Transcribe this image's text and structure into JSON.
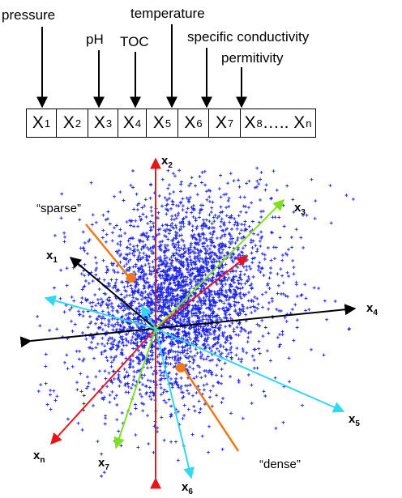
{
  "top_labels": {
    "pressure": "pressure",
    "ph": "pH",
    "toc": "TOC",
    "temperature": "temperature",
    "specific_conductivity": "specific conductivity",
    "permitivity": "permitivity"
  },
  "vector_cells": [
    {
      "base": "X",
      "sub": "1"
    },
    {
      "base": "X",
      "sub": "2"
    },
    {
      "base": "X",
      "sub": "3"
    },
    {
      "base": "X",
      "sub": "4"
    },
    {
      "base": "X",
      "sub": "5"
    },
    {
      "base": "X",
      "sub": "6"
    },
    {
      "base": "X",
      "sub": "7"
    },
    {
      "base": "X",
      "sub": "8",
      "suffix": "….. X",
      "sub2": "n"
    }
  ],
  "axes": [
    {
      "id": "x1",
      "base": "x",
      "sub": "1",
      "color": "#000000"
    },
    {
      "id": "x2",
      "base": "x",
      "sub": "2",
      "color": "#e8141c"
    },
    {
      "id": "x3",
      "base": "x",
      "sub": "3",
      "color": "#80e020"
    },
    {
      "id": "x4",
      "base": "x",
      "sub": "4",
      "color": "#000000"
    },
    {
      "id": "x5",
      "base": "x",
      "sub": "5",
      "color": "#30d8f0"
    },
    {
      "id": "x6",
      "base": "x",
      "sub": "6",
      "color": "#30d8f0"
    },
    {
      "id": "x7",
      "base": "x",
      "sub": "7",
      "color": "#80e020"
    },
    {
      "id": "xn",
      "base": "x",
      "sub": "n",
      "color": "#e8141c"
    }
  ],
  "annotations": {
    "sparse": "“sparse”",
    "dense": "“dense”",
    "pointer_color": "#f07818",
    "cloud_color": "#1a22e6"
  }
}
